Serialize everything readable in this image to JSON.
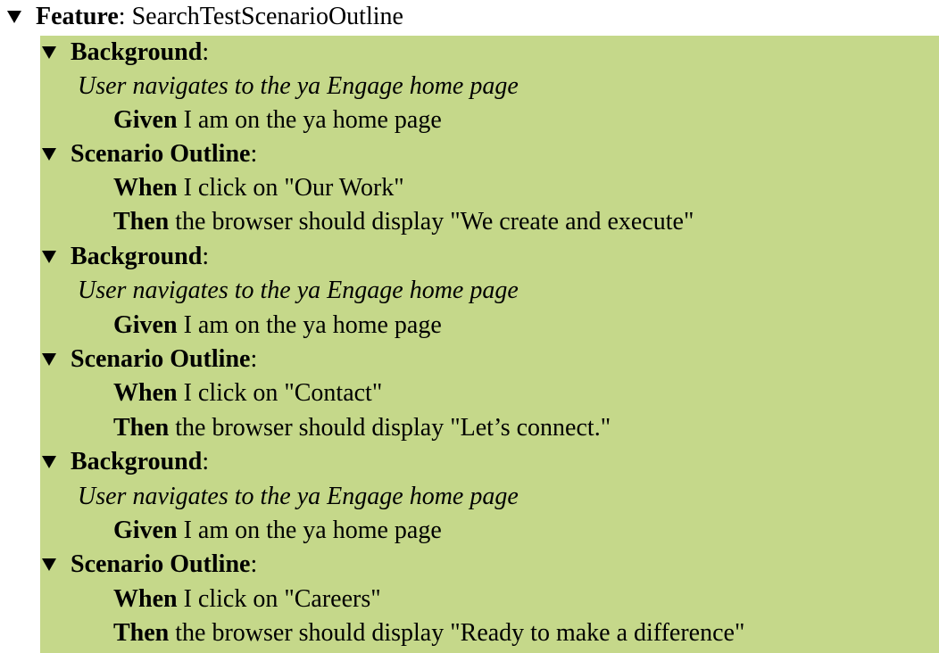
{
  "feature": {
    "keyword": "Feature",
    "separator": ":",
    "name": "SearchTestScenarioOutline"
  },
  "blocks": [
    {
      "keyword": "Background",
      "separator": ":",
      "description": "User navigates to the ya Engage home page",
      "steps": [
        {
          "keyword": "Given",
          "text": "I am on the ya home page"
        }
      ]
    },
    {
      "keyword": "Scenario Outline",
      "separator": ":",
      "steps": [
        {
          "keyword": "When",
          "text": "I click on \"Our Work\""
        },
        {
          "keyword": "Then",
          "text": "the browser should display \"We create and execute\""
        }
      ]
    },
    {
      "keyword": "Background",
      "separator": ":",
      "description": "User navigates to the ya Engage home page",
      "steps": [
        {
          "keyword": "Given",
          "text": "I am on the ya home page"
        }
      ]
    },
    {
      "keyword": "Scenario Outline",
      "separator": ":",
      "steps": [
        {
          "keyword": "When",
          "text": "I click on \"Contact\""
        },
        {
          "keyword": "Then",
          "text": "the browser should display \"Let’s connect.\""
        }
      ]
    },
    {
      "keyword": "Background",
      "separator": ":",
      "description": "User navigates to the ya Engage home page",
      "steps": [
        {
          "keyword": "Given",
          "text": "I am on the ya home page"
        }
      ]
    },
    {
      "keyword": "Scenario Outline",
      "separator": ":",
      "steps": [
        {
          "keyword": "When",
          "text": "I click on \"Careers\""
        },
        {
          "keyword": "Then",
          "text": "the browser should display \"Ready to make a difference\""
        }
      ]
    }
  ],
  "colors": {
    "panel_background": "#c5d88a",
    "text": "#000000"
  },
  "icons": {
    "toggle": "triangle-down-icon"
  }
}
